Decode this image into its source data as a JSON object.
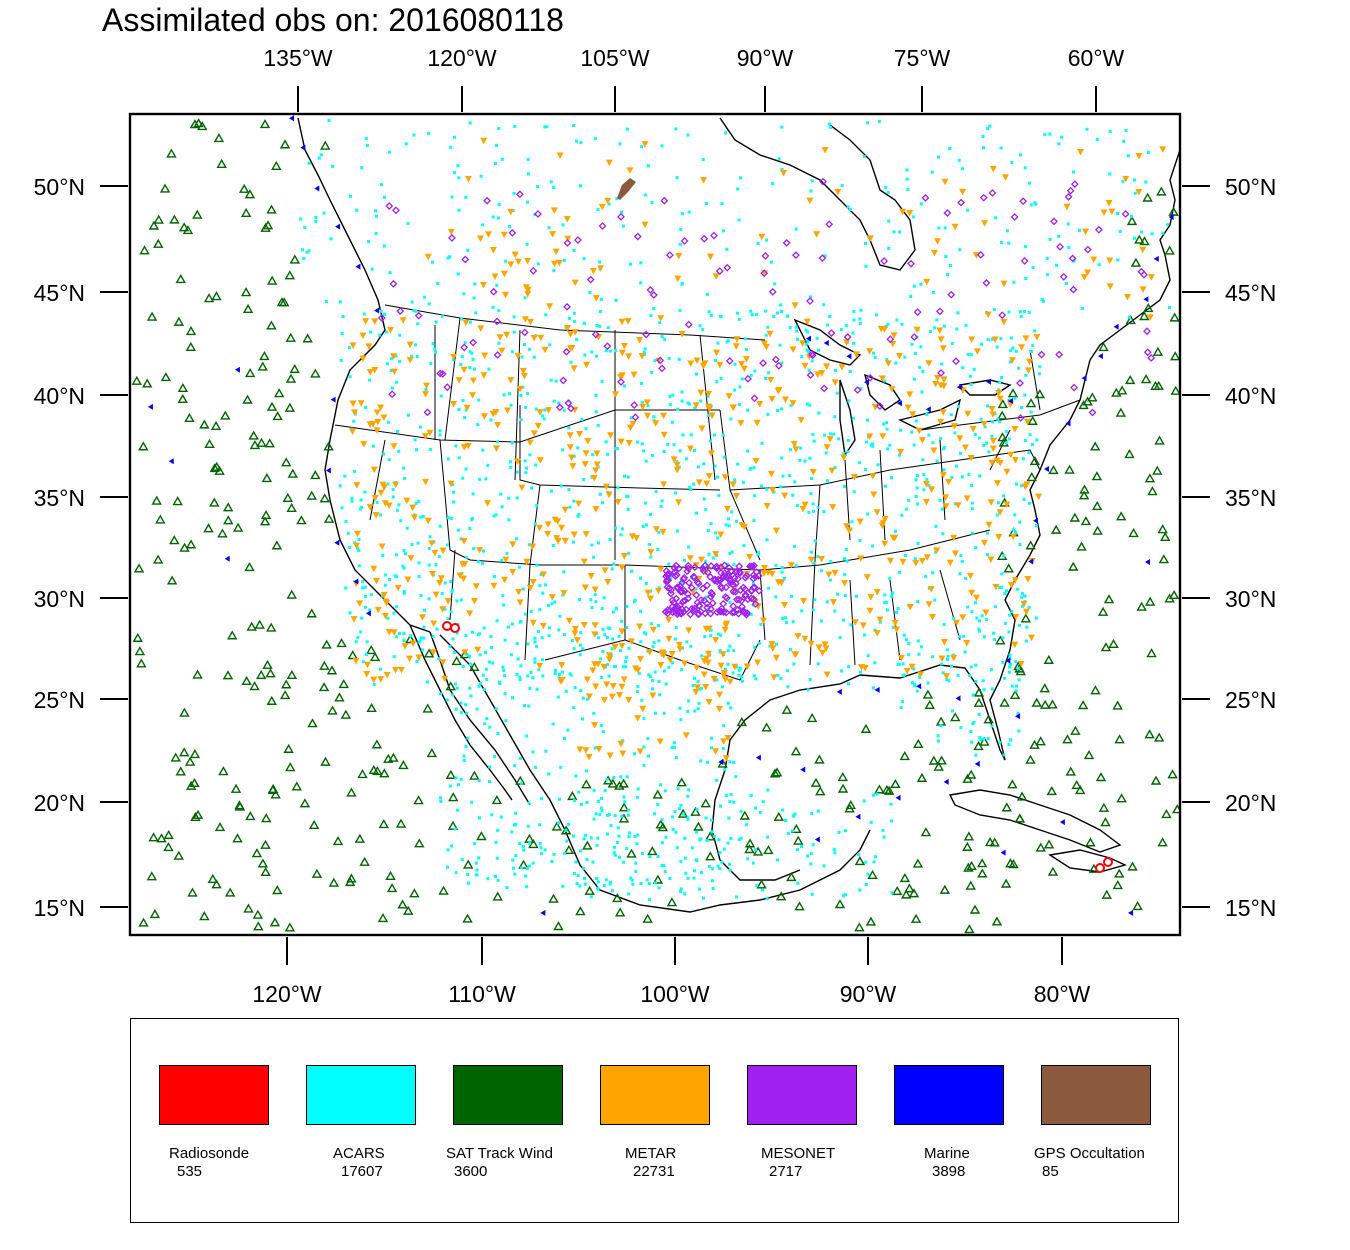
{
  "title": "Assimilated obs on: 2016080118",
  "top_lon_labels": [
    "135°W",
    "120°W",
    "105°W",
    "90°W",
    "75°W",
    "60°W"
  ],
  "bottom_lon_labels": [
    "120°W",
    "110°W",
    "100°W",
    "90°W",
    "80°W"
  ],
  "lat_labels": [
    "50°N",
    "45°N",
    "40°N",
    "35°N",
    "30°N",
    "25°N",
    "20°N",
    "15°N"
  ],
  "legend": [
    {
      "label": "Radiosonde",
      "count": "535",
      "color": "#ff0000"
    },
    {
      "label": "ACARS",
      "count": "17607",
      "color": "#00ffff"
    },
    {
      "label": "SAT Track Wind",
      "count": "3600",
      "color": "#006400"
    },
    {
      "label": "METAR",
      "count": "22731",
      "color": "#ffa500"
    },
    {
      "label": "MESONET",
      "count": "2717",
      "color": "#a020f0"
    },
    {
      "label": "Marine",
      "count": "3898",
      "color": "#0000ff"
    },
    {
      "label": "GPS Occultation",
      "count": "85",
      "color": "#8b5a3c"
    }
  ]
}
